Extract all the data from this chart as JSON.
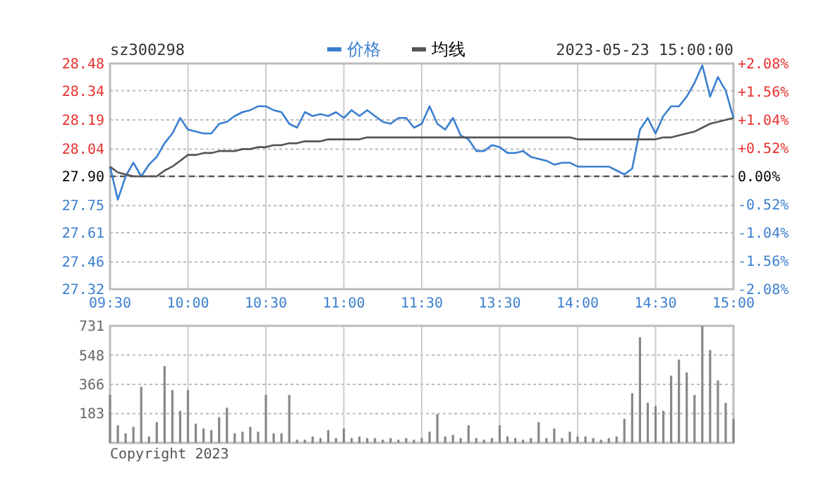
{
  "chart_data": [
    {
      "type": "line",
      "title": "sz300298",
      "annotations": [
        "2023-05-23 15:00:00"
      ],
      "categories": [
        "09:30",
        null,
        null,
        null,
        null,
        null,
        null,
        null,
        null,
        null,
        "10:00",
        null,
        null,
        null,
        null,
        null,
        null,
        null,
        null,
        null,
        "10:30",
        null,
        null,
        null,
        null,
        null,
        null,
        null,
        null,
        null,
        "11:00",
        null,
        null,
        null,
        null,
        null,
        null,
        null,
        null,
        null,
        "11:30",
        null,
        null,
        null,
        null,
        null,
        null,
        null,
        null,
        null,
        "13:30",
        null,
        null,
        null,
        null,
        null,
        null,
        null,
        null,
        null,
        "14:00",
        null,
        null,
        null,
        null,
        null,
        null,
        null,
        null,
        null,
        "14:30",
        null,
        null,
        null,
        null,
        null,
        null,
        null,
        null,
        null,
        "15:00"
      ],
      "series": [
        {
          "name": "价格",
          "color": "#3b7fcf",
          "values": [
            27.95,
            27.78,
            27.9,
            27.97,
            27.9,
            27.96,
            28.0,
            28.07,
            28.12,
            28.2,
            28.14,
            28.13,
            28.12,
            28.12,
            28.17,
            28.18,
            28.21,
            28.23,
            28.24,
            28.26,
            28.26,
            28.24,
            28.23,
            28.17,
            28.15,
            28.23,
            28.21,
            28.22,
            28.21,
            28.23,
            28.2,
            28.24,
            28.21,
            28.24,
            28.21,
            28.18,
            28.17,
            28.2,
            28.2,
            28.15,
            28.17,
            28.26,
            28.17,
            28.14,
            28.2,
            28.11,
            28.09,
            28.03,
            28.03,
            28.06,
            28.05,
            28.02,
            28.02,
            28.03,
            28.0,
            27.99,
            27.98,
            27.96,
            27.97,
            27.97,
            27.95,
            27.95,
            27.95,
            27.95,
            27.95,
            27.93,
            27.91,
            27.94,
            28.14,
            28.2,
            28.12,
            28.21,
            28.26,
            28.26,
            28.31,
            28.38,
            28.47,
            28.31,
            28.41,
            28.34,
            28.2
          ]
        },
        {
          "name": "均线",
          "color": "#555555",
          "values": [
            27.95,
            27.92,
            27.91,
            27.9,
            27.9,
            27.9,
            27.9,
            27.93,
            27.95,
            27.98,
            28.01,
            28.01,
            28.02,
            28.02,
            28.03,
            28.03,
            28.03,
            28.04,
            28.04,
            28.05,
            28.05,
            28.06,
            28.06,
            28.07,
            28.07,
            28.08,
            28.08,
            28.08,
            28.09,
            28.09,
            28.09,
            28.09,
            28.09,
            28.1,
            28.1,
            28.1,
            28.1,
            28.1,
            28.1,
            28.1,
            28.1,
            28.1,
            28.1,
            28.1,
            28.1,
            28.1,
            28.1,
            28.1,
            28.1,
            28.1,
            28.1,
            28.1,
            28.1,
            28.1,
            28.1,
            28.1,
            28.1,
            28.1,
            28.1,
            28.1,
            28.09,
            28.09,
            28.09,
            28.09,
            28.09,
            28.09,
            28.09,
            28.09,
            28.09,
            28.09,
            28.09,
            28.1,
            28.1,
            28.11,
            28.12,
            28.13,
            28.15,
            28.17,
            28.18,
            28.19,
            28.2
          ]
        }
      ],
      "ylim": [
        27.32,
        28.48
      ],
      "yticks": [
        27.32,
        27.46,
        27.61,
        27.75,
        {
          "value": 27.9,
          "label": "27.90"
        },
        28.04,
        28.19,
        28.34,
        28.48
      ],
      "y2lim": [
        -2.08,
        2.08
      ],
      "y2ticks": [
        {
          "value": -2.08,
          "label": "-2.08%"
        },
        {
          "value": -1.56,
          "label": "-1.56%"
        },
        {
          "value": -1.04,
          "label": "-1.04%"
        },
        {
          "value": -0.52,
          "label": "-0.52%"
        },
        {
          "value": 0,
          "label": "0.00%"
        },
        {
          "value": 0.52,
          "label": "+0.52%"
        },
        {
          "value": 1.04,
          "label": "+1.04%"
        },
        {
          "value": 1.56,
          "label": "+1.56%"
        },
        {
          "value": 2.08,
          "label": "+2.08%"
        }
      ],
      "ref_lines": [
        {
          "axis": "y",
          "value": 27.9,
          "line_style": "dashed",
          "color": "#555555"
        }
      ],
      "grid": true,
      "legend": "top"
    },
    {
      "type": "bar",
      "annotations": [
        "Copyright 2023"
      ],
      "categories": [
        null,
        null,
        null,
        null,
        null,
        null,
        null,
        null,
        null,
        null,
        null,
        null,
        null,
        null,
        null,
        null,
        null,
        null,
        null,
        null,
        null,
        null,
        null,
        null,
        null,
        null,
        null,
        null,
        null,
        null,
        null,
        null,
        null,
        null,
        null,
        null,
        null,
        null,
        null,
        null,
        null,
        null,
        null,
        null,
        null,
        null,
        null,
        null,
        null,
        null,
        null,
        null,
        null,
        null,
        null,
        null,
        null,
        null,
        null,
        null,
        null,
        null,
        null,
        null,
        null,
        null,
        null,
        null,
        null,
        null,
        null,
        null,
        null,
        null,
        null,
        null,
        null,
        null,
        null,
        null,
        null
      ],
      "values": [
        300,
        110,
        60,
        100,
        350,
        40,
        130,
        480,
        330,
        200,
        330,
        120,
        90,
        80,
        160,
        220,
        60,
        70,
        100,
        70,
        300,
        60,
        60,
        300,
        20,
        20,
        40,
        30,
        80,
        30,
        90,
        30,
        40,
        30,
        30,
        20,
        30,
        20,
        30,
        20,
        30,
        70,
        180,
        40,
        50,
        30,
        110,
        30,
        20,
        30,
        110,
        40,
        30,
        20,
        30,
        130,
        30,
        90,
        30,
        70,
        40,
        40,
        30,
        20,
        30,
        40,
        150,
        310,
        660,
        250,
        230,
        200,
        420,
        520,
        440,
        300,
        731,
        580,
        390,
        250,
        150
      ],
      "color": "#888888",
      "ylim": [
        0,
        731
      ],
      "yticks": [
        183,
        366,
        548,
        731
      ],
      "grid": true,
      "tick_labels": "y"
    }
  ]
}
